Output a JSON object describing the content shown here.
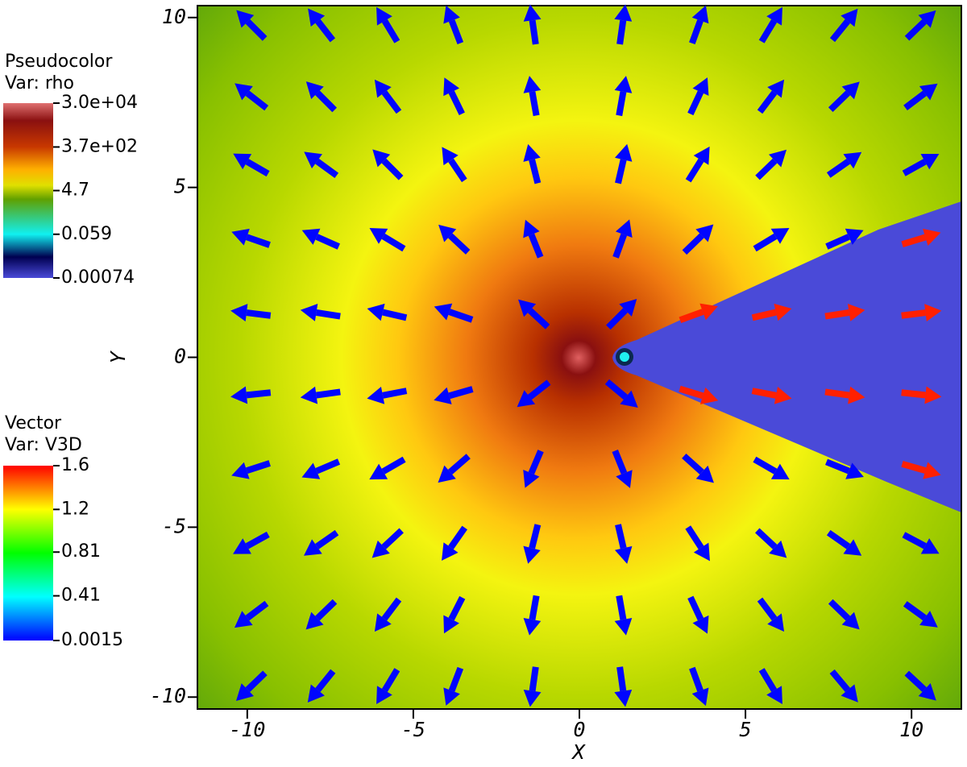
{
  "chart_data": {
    "type": "vector-field",
    "x_label": "X",
    "y_label": "Y",
    "xlim": [
      -11.5,
      11.5
    ],
    "ylim": [
      -10.35,
      10.35
    ],
    "xticks": [
      -10,
      -5,
      0,
      5,
      10
    ],
    "yticks": [
      -10,
      -5,
      0,
      5,
      10
    ],
    "legends": [
      {
        "title": "Pseudocolor",
        "variable": "Var: rho",
        "scale": "log",
        "ticks": [
          {
            "value": 30000,
            "label": "3.0e+04"
          },
          {
            "value": 370,
            "label": "3.7e+02"
          },
          4.7,
          0.059,
          0.00074
        ]
      },
      {
        "title": "Vector",
        "variable": "Var: V3D",
        "scale": "linear",
        "ticks": [
          1.6,
          1.2,
          0.81,
          0.41,
          0.0015
        ]
      }
    ],
    "vectors": {
      "x": [
        -9.9,
        -7.8,
        -5.8,
        -3.8,
        -1.4,
        1.3,
        3.6,
        5.8,
        8.0,
        10.3
      ],
      "y": [
        9.8,
        7.7,
        5.7,
        3.5,
        1.3,
        -1.1,
        -3.3,
        -5.5,
        -7.6,
        -9.7
      ],
      "angle": [
        [
          135,
          128,
          121,
          111,
          98,
          82,
          70,
          59,
          51,
          44
        ],
        [
          142,
          135,
          127,
          116,
          100,
          80,
          65,
          53,
          44,
          37
        ],
        [
          150,
          144,
          135,
          124,
          104,
          77,
          58,
          44,
          35,
          29
        ],
        [
          161,
          156,
          149,
          137,
          112,
          70,
          44,
          31,
          24,
          17
        ],
        [
          173,
          171,
          167,
          161,
          137,
          45,
          20,
          13,
          9,
          7
        ],
        [
          -174,
          -172,
          -169,
          -164,
          -142,
          -40,
          -17,
          -11,
          -8,
          -6
        ],
        [
          -162,
          -157,
          -150,
          -139,
          -113,
          -68,
          -42,
          -30,
          -22,
          -16
        ],
        [
          -151,
          -145,
          -137,
          -125,
          -104,
          -77,
          -57,
          -43,
          -35,
          -28
        ],
        [
          -143,
          -136,
          -127,
          -117,
          -100,
          -80,
          -65,
          -53,
          -44,
          -36
        ],
        [
          -136,
          -129,
          -121,
          -111,
          -98,
          -82,
          -70,
          -59,
          -50,
          -43
        ]
      ],
      "magnitude": [
        [
          0.01,
          0.01,
          0.01,
          0.01,
          0.01,
          0.01,
          0.01,
          0.01,
          0.01,
          0.01
        ],
        [
          0.01,
          0.01,
          0.01,
          0.01,
          0.01,
          0.01,
          0.01,
          0.01,
          0.01,
          0.01
        ],
        [
          0.01,
          0.01,
          0.01,
          0.01,
          0.01,
          0.01,
          0.01,
          0.01,
          0.01,
          0.01
        ],
        [
          0.01,
          0.01,
          0.01,
          0.01,
          0.01,
          0.01,
          0.01,
          0.01,
          0.01,
          1.55
        ],
        [
          0.01,
          0.01,
          0.01,
          0.01,
          0.01,
          0.01,
          1.55,
          1.55,
          1.55,
          1.55
        ],
        [
          0.01,
          0.01,
          0.01,
          0.01,
          0.01,
          0.01,
          1.55,
          1.55,
          1.55,
          1.55
        ],
        [
          0.01,
          0.01,
          0.01,
          0.01,
          0.01,
          0.01,
          0.01,
          0.01,
          0.01,
          1.55
        ],
        [
          0.01,
          0.01,
          0.01,
          0.01,
          0.01,
          0.01,
          0.01,
          0.01,
          0.01,
          0.01
        ],
        [
          0.01,
          0.01,
          0.01,
          0.01,
          0.01,
          0.01,
          0.01,
          0.01,
          0.01,
          0.01
        ],
        [
          0.01,
          0.01,
          0.01,
          0.01,
          0.01,
          0.01,
          0.01,
          0.01,
          0.01,
          0.01
        ]
      ]
    }
  }
}
